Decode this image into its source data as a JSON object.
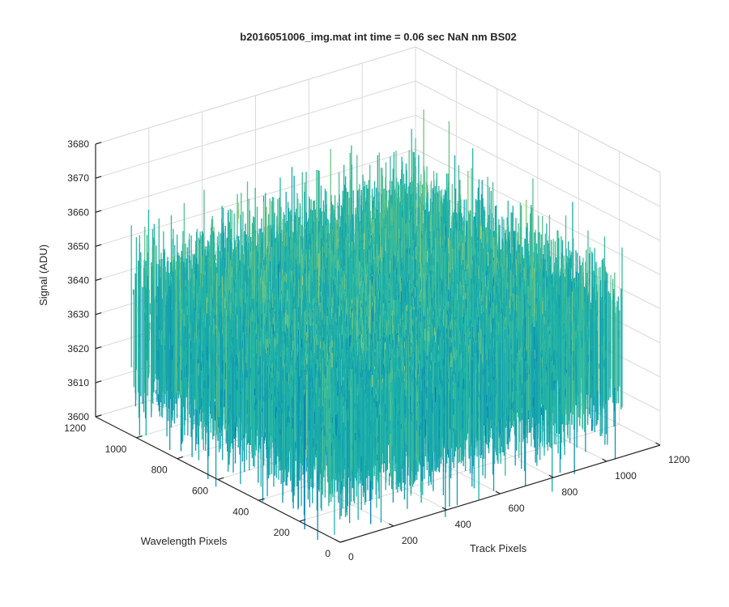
{
  "chart_data": {
    "type": "surface",
    "title": "b2016051006_img.mat int time = 0.06 sec  NaN nm BS02",
    "xlabel": "Track Pixels",
    "ylabel": "Wavelength Pixels",
    "zlabel": "Signal (ADU)",
    "xlim": [
      0,
      1200
    ],
    "ylim": [
      0,
      1200
    ],
    "zlim": [
      3600,
      3680
    ],
    "x_ticks": [
      "0",
      "200",
      "400",
      "600",
      "800",
      "1000",
      "1200"
    ],
    "y_ticks": [
      "0",
      "200",
      "400",
      "600",
      "800",
      "1000",
      "1200"
    ],
    "z_ticks": [
      "3600",
      "3610",
      "3620",
      "3630",
      "3640",
      "3650",
      "3660",
      "3670",
      "3680"
    ],
    "surface": {
      "x_range": [
        0,
        1056
      ],
      "y_range": [
        0,
        1024
      ],
      "z_mean": 3632,
      "z_min": 3600,
      "z_max": 3670,
      "description": "noisy, roughly flat dark frame"
    },
    "grid": true,
    "colormap": "parula",
    "colors": {
      "axis": "#262626",
      "grid": "#d9d9d9",
      "low": "#0072bd",
      "mid": "#1fb5a8",
      "high": "#e2d84e"
    }
  }
}
